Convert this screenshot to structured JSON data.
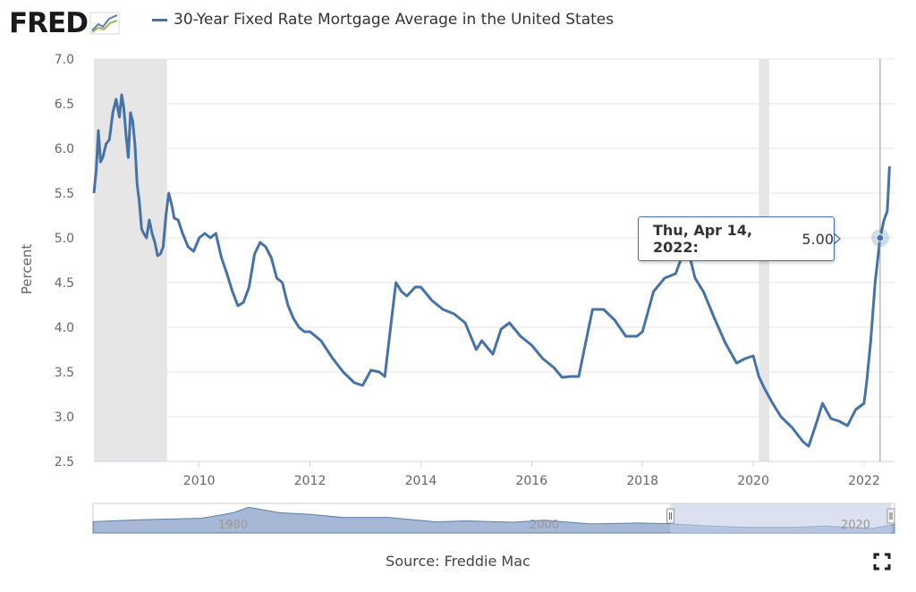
{
  "header": {
    "logo_text": "FRED",
    "series_title": "30-Year Fixed Rate Mortgage Average in the United States",
    "series_color": "#4572a7"
  },
  "tooltip": {
    "date_label": "Thu, Apr 14, 2022:",
    "value_label": "5.00"
  },
  "footer": {
    "source": "Source: Freddie Mac"
  },
  "navigator": {
    "labels": [
      "1980",
      "2000",
      "2020"
    ]
  },
  "colors": {
    "line": "#4572a7",
    "recession": "#e6e6e6",
    "grid": "#e6e6e6",
    "navigator_fill": "#8aa0c8",
    "navigator_selection": "#c4cde6"
  },
  "chart_data": {
    "type": "line",
    "title": "30-Year Fixed Rate Mortgage Average in the United States",
    "xlabel": "",
    "ylabel": "Percent",
    "ylim": [
      2.5,
      7.0
    ],
    "xlim": [
      2008.1,
      2022.55
    ],
    "y_ticks": [
      "2.5",
      "3.0",
      "3.5",
      "4.0",
      "4.5",
      "5.0",
      "5.5",
      "6.0",
      "6.5",
      "7.0"
    ],
    "x_ticks": [
      "2010",
      "2012",
      "2014",
      "2016",
      "2018",
      "2020",
      "2022"
    ],
    "grid": true,
    "legend": "top-left",
    "recessions": [
      [
        2008.1,
        2009.42
      ],
      [
        2020.1,
        2020.29
      ]
    ],
    "highlight": {
      "x": 2022.29,
      "y": 5.0,
      "label": "Thu, Apr 14, 2022: 5.00"
    },
    "series": [
      {
        "name": "30-Year Fixed Rate Mortgage Average in the United States",
        "x": [
          2008.1,
          2008.14,
          2008.18,
          2008.22,
          2008.26,
          2008.32,
          2008.38,
          2008.44,
          2008.5,
          2008.56,
          2008.6,
          2008.64,
          2008.68,
          2008.72,
          2008.76,
          2008.8,
          2008.84,
          2008.88,
          2008.92,
          2008.96,
          2009.0,
          2009.05,
          2009.1,
          2009.15,
          2009.2,
          2009.25,
          2009.3,
          2009.35,
          2009.4,
          2009.45,
          2009.5,
          2009.55,
          2009.62,
          2009.7,
          2009.8,
          2009.9,
          2010.0,
          2010.1,
          2010.2,
          2010.3,
          2010.4,
          2010.5,
          2010.6,
          2010.7,
          2010.8,
          2010.9,
          2011.0,
          2011.1,
          2011.2,
          2011.3,
          2011.4,
          2011.5,
          2011.6,
          2011.7,
          2011.8,
          2011.9,
          2012.0,
          2012.2,
          2012.4,
          2012.6,
          2012.8,
          2012.95,
          2013.1,
          2013.25,
          2013.35,
          2013.45,
          2013.55,
          2013.65,
          2013.75,
          2013.9,
          2014.0,
          2014.2,
          2014.4,
          2014.6,
          2014.8,
          2015.0,
          2015.1,
          2015.3,
          2015.45,
          2015.6,
          2015.8,
          2016.0,
          2016.2,
          2016.4,
          2016.55,
          2016.7,
          2016.85,
          2016.95,
          2017.1,
          2017.3,
          2017.5,
          2017.7,
          2017.9,
          2018.0,
          2018.2,
          2018.4,
          2018.6,
          2018.75,
          2018.85,
          2018.95,
          2019.1,
          2019.3,
          2019.5,
          2019.7,
          2019.85,
          2020.0,
          2020.1,
          2020.2,
          2020.35,
          2020.5,
          2020.7,
          2020.9,
          2021.0,
          2021.15,
          2021.25,
          2021.4,
          2021.55,
          2021.7,
          2021.85,
          2022.0,
          2022.05,
          2022.12,
          2022.2,
          2022.29,
          2022.36,
          2022.42,
          2022.46
        ],
        "values": [
          5.5,
          5.75,
          6.2,
          5.85,
          5.9,
          6.05,
          6.1,
          6.4,
          6.55,
          6.35,
          6.6,
          6.45,
          6.15,
          5.9,
          6.4,
          6.3,
          6.05,
          5.6,
          5.4,
          5.1,
          5.05,
          5.0,
          5.2,
          5.05,
          4.95,
          4.8,
          4.82,
          4.9,
          5.25,
          5.5,
          5.38,
          5.22,
          5.2,
          5.05,
          4.9,
          4.85,
          5.0,
          5.05,
          5.0,
          5.05,
          4.78,
          4.6,
          4.4,
          4.24,
          4.28,
          4.45,
          4.82,
          4.95,
          4.9,
          4.78,
          4.55,
          4.5,
          4.25,
          4.1,
          4.0,
          3.95,
          3.95,
          3.85,
          3.66,
          3.5,
          3.38,
          3.35,
          3.52,
          3.5,
          3.45,
          3.98,
          4.5,
          4.4,
          4.35,
          4.45,
          4.45,
          4.3,
          4.2,
          4.15,
          4.05,
          3.75,
          3.85,
          3.7,
          3.98,
          4.05,
          3.9,
          3.8,
          3.65,
          3.55,
          3.44,
          3.45,
          3.45,
          3.75,
          4.2,
          4.2,
          4.08,
          3.9,
          3.9,
          3.95,
          4.4,
          4.55,
          4.6,
          4.85,
          4.8,
          4.55,
          4.4,
          4.1,
          3.82,
          3.6,
          3.65,
          3.68,
          3.45,
          3.32,
          3.15,
          3.0,
          2.88,
          2.72,
          2.67,
          2.95,
          3.15,
          2.98,
          2.95,
          2.9,
          3.08,
          3.15,
          3.4,
          3.85,
          4.5,
          5.0,
          5.2,
          5.3,
          5.8
        ]
      }
    ]
  }
}
